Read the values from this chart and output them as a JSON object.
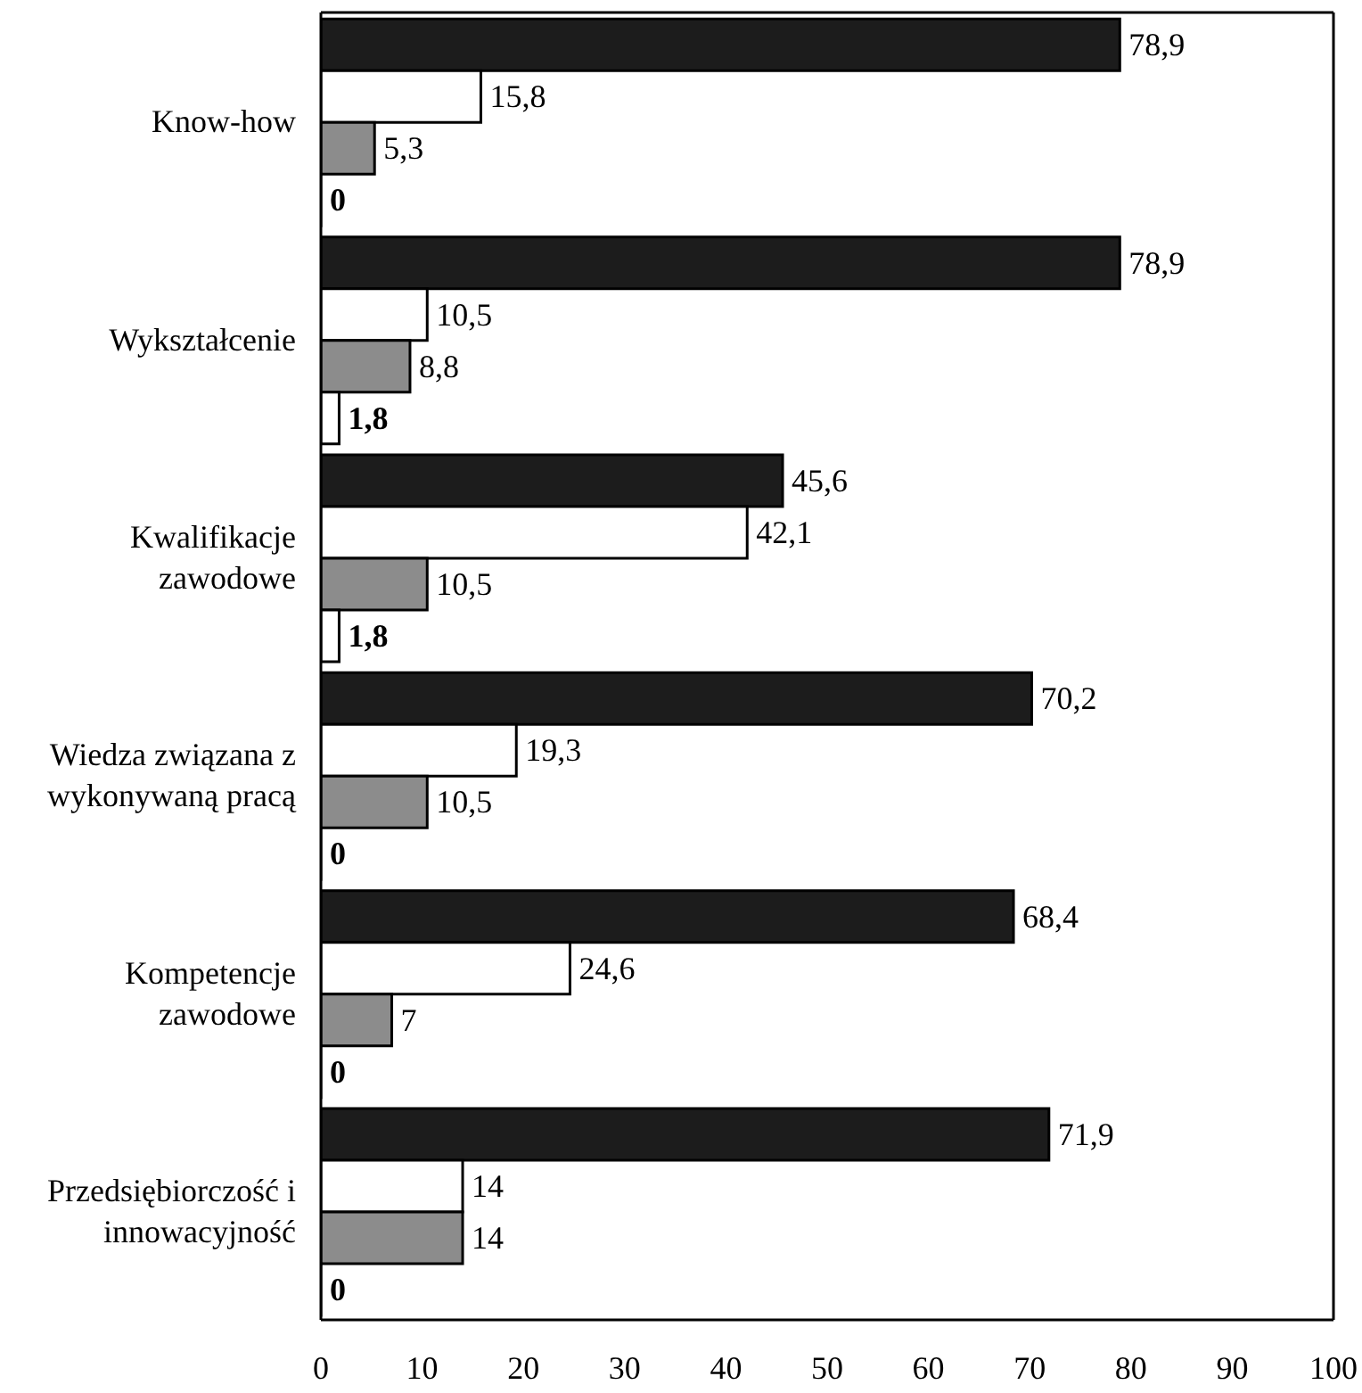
{
  "chart_data": {
    "type": "bar",
    "orientation": "horizontal",
    "categories": [
      "Know-how",
      "Wykształcenie",
      "Kwalifikacje zawodowe",
      "Wiedza związana z wykonywaną pracą",
      "Kompetencje zawodowe",
      "Przedsiębiorczość i innowacyjność"
    ],
    "series": [
      {
        "color": "#1c1c1c",
        "values": [
          78.9,
          78.9,
          45.6,
          70.2,
          68.4,
          71.9
        ],
        "value_labels": [
          "78,9",
          "78,9",
          "45,6",
          "70,2",
          "68,4",
          "71,9"
        ]
      },
      {
        "color": "#ffffff",
        "values": [
          15.8,
          10.5,
          42.1,
          19.3,
          24.6,
          14
        ],
        "value_labels": [
          "15,8",
          "10,5",
          "42,1",
          "19,3",
          "24,6",
          "14"
        ]
      },
      {
        "color": "#8c8c8c",
        "values": [
          5.3,
          8.8,
          10.5,
          10.5,
          7,
          14
        ],
        "value_labels": [
          "5,3",
          "8,8",
          "10,5",
          "10,5",
          "7",
          "14"
        ]
      },
      {
        "color": "#ffffff",
        "values": [
          0,
          1.8,
          1.8,
          0,
          0,
          0
        ],
        "value_labels": [
          "0",
          "1,8",
          "1,8",
          "0",
          "0",
          "0"
        ]
      }
    ],
    "xlim": [
      0,
      100
    ],
    "xticks": [
      0,
      10,
      20,
      30,
      40,
      50,
      60,
      70,
      80,
      90,
      100
    ]
  }
}
